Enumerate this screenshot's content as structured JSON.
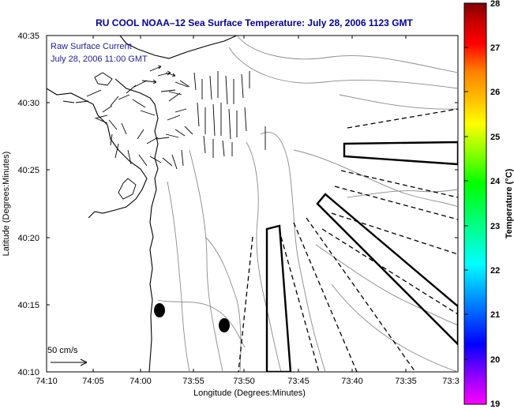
{
  "title": "RU COOL  NOAA–12  Sea Surface Temperature:  July 28, 2006 1123 GMT",
  "legend_text": {
    "line1": "Raw Surface Current",
    "line2": "July 28, 2006 11:00 GMT"
  },
  "scale_label": "50 cm/s",
  "axes": {
    "xlabel": "Longitude (Degrees:Minutes)",
    "ylabel": "Latitude (Degrees:Minutes)",
    "xticks": [
      "74:10",
      "74:05",
      "74:00",
      "73:55",
      "73:50",
      "73:45",
      "73:40",
      "73:35",
      "73:3"
    ],
    "yticks": [
      "40:35",
      "40:30",
      "40:25",
      "40:20",
      "40:15",
      "40:10"
    ]
  },
  "colorbar": {
    "label": "Temperature (°C)",
    "ticks": [
      "28",
      "27",
      "26",
      "25",
      "24",
      "23",
      "22",
      "21",
      "20",
      "19"
    ],
    "colors": [
      "#ff00ff",
      "#8000ff",
      "#0000ff",
      "#0080ff",
      "#00ffff",
      "#00ff80",
      "#00ff00",
      "#80ff00",
      "#ffff00",
      "#ffc000",
      "#ff8000",
      "#ff0000",
      "#c00000",
      "#800000"
    ]
  },
  "colors": {
    "title": "#0000a0",
    "note": "#1c1c9c",
    "contour": "#8a8a8a"
  }
}
